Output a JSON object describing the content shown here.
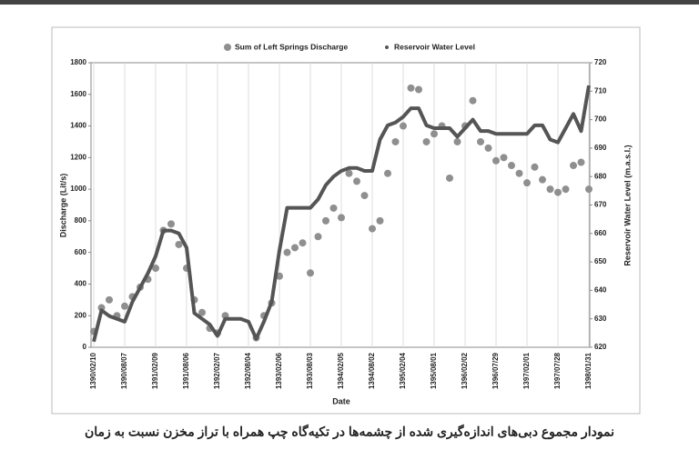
{
  "chart_data": {
    "type": "scatter",
    "legend": [],
    "legend_position": "top",
    "xlabel": "Date",
    "ylabel": "Discharge (Lit/s)",
    "y2label": "Reservoir Water Level (m.a.s.l.)",
    "caption": "نمودار مجموع دبی‌های اندازه‌گیری شده از چشمه‌ها در تکیه‌گاه چپ همراه با تراز مخزن نسبت به زمان",
    "xgrid": true,
    "categories": [
      "1390/02/10",
      null,
      null,
      null,
      "1390/08/07",
      null,
      null,
      null,
      "1391/02/09",
      null,
      null,
      null,
      "1391/08/06",
      null,
      null,
      null,
      "1392/02/07",
      null,
      null,
      null,
      "1392/08/04",
      null,
      null,
      null,
      "1393/02/06",
      null,
      null,
      null,
      "1393/08/03",
      null,
      null,
      null,
      "1394/02/05",
      null,
      null,
      null,
      "1394/08/02",
      null,
      null,
      null,
      "1395/02/04",
      null,
      null,
      null,
      "1395/08/01",
      null,
      null,
      null,
      "1396/02/02",
      null,
      null,
      null,
      "1396/07/29",
      null,
      null,
      null,
      "1397/02/01",
      null,
      null,
      null,
      "1397/07/28",
      null,
      null,
      null,
      "1398/01/31"
    ],
    "ylim": [
      0,
      1800
    ],
    "yticks": [
      0,
      200,
      400,
      600,
      800,
      1000,
      1200,
      1400,
      1600,
      1800
    ],
    "y2lim": [
      620,
      720
    ],
    "y2ticks": [
      620,
      630,
      640,
      650,
      660,
      670,
      680,
      690,
      700,
      710,
      720
    ],
    "series": [
      {
        "name": "Sum of Left Springs Discharge",
        "color": "#8f8f8f",
        "style": "dots",
        "values": [
          100,
          250,
          300,
          200,
          260,
          320,
          380,
          430,
          500,
          740,
          780,
          650,
          500,
          300,
          220,
          120,
          90,
          200,
          null,
          null,
          null,
          60,
          200,
          280,
          450,
          600,
          630,
          660,
          470,
          700,
          800,
          880,
          820,
          1100,
          1050,
          960,
          750,
          800,
          1100,
          1300,
          1400,
          1640,
          1630,
          1300,
          1350,
          1400,
          1070,
          1300,
          1400,
          1560,
          1300,
          1260,
          1180,
          1200,
          1150,
          1100,
          1040,
          1140,
          1060,
          1000,
          980,
          1000,
          1150,
          1170,
          1000
        ]
      },
      {
        "name": "Reservoir Water Level",
        "color": "#555555",
        "style": "line",
        "axis": "y2",
        "values": [
          622,
          633,
          631,
          630,
          629,
          636,
          641,
          646,
          652,
          661,
          661,
          660,
          655,
          632,
          630,
          628,
          624,
          630,
          630,
          630,
          629,
          623,
          629,
          636,
          654,
          669,
          669,
          669,
          669,
          672,
          677,
          680,
          682,
          683,
          683,
          682,
          682,
          693,
          698,
          699,
          701,
          704,
          704,
          698,
          697,
          697,
          697,
          694,
          697,
          700,
          696,
          696,
          695,
          695,
          695,
          695,
          695,
          698,
          698,
          693,
          692,
          697,
          702,
          696,
          712
        ]
      }
    ]
  }
}
